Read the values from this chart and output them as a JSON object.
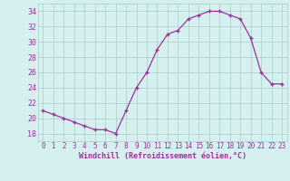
{
  "x": [
    0,
    1,
    2,
    3,
    4,
    5,
    6,
    7,
    8,
    9,
    10,
    11,
    12,
    13,
    14,
    15,
    16,
    17,
    18,
    19,
    20,
    21,
    22,
    23
  ],
  "y": [
    21.0,
    20.5,
    20.0,
    19.5,
    19.0,
    18.5,
    18.5,
    18.0,
    21.0,
    24.0,
    26.0,
    29.0,
    31.0,
    31.5,
    33.0,
    33.5,
    34.0,
    34.0,
    33.5,
    33.0,
    30.5,
    26.0,
    24.5,
    24.5
  ],
  "xlabel": "Windchill (Refroidissement éolien,°C)",
  "ylim": [
    17,
    35
  ],
  "yticks": [
    18,
    20,
    22,
    24,
    26,
    28,
    30,
    32,
    34
  ],
  "xticks": [
    0,
    1,
    2,
    3,
    4,
    5,
    6,
    7,
    8,
    9,
    10,
    11,
    12,
    13,
    14,
    15,
    16,
    17,
    18,
    19,
    20,
    21,
    22,
    23
  ],
  "line_color": "#993399",
  "marker": "+",
  "bg_color": "#d6f0f0",
  "grid_color": "#aacccc",
  "xlabel_color": "#993399",
  "tick_color": "#993399",
  "tick_fontsize": 5.5,
  "xlabel_fontsize": 6.0
}
